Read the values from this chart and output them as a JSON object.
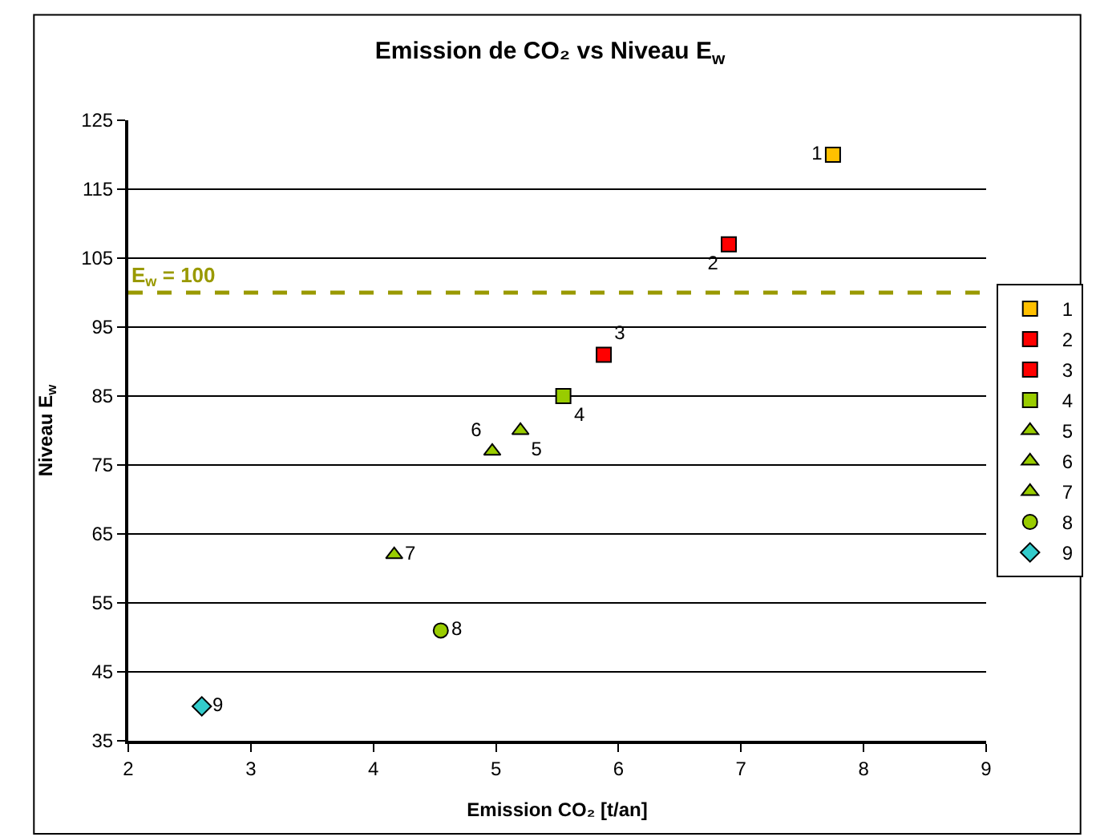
{
  "chart_data": {
    "type": "scatter",
    "title": "Emission de CO₂ vs Niveau E$_{w}$",
    "xlabel": "Emission CO₂ [t/an]",
    "ylabel": "Niveau E$_{w}$",
    "xlim": [
      2,
      9
    ],
    "xticks": [
      2,
      3,
      4,
      5,
      6,
      7,
      8,
      9
    ],
    "ylim": [
      35,
      125
    ],
    "yticks": [
      35,
      45,
      55,
      65,
      75,
      85,
      95,
      105,
      115,
      125
    ],
    "grid": "y",
    "legend": "right",
    "series": [
      {
        "name": "1",
        "color": "#ffc000",
        "marker": "square",
        "x": [
          7.75
        ],
        "values": [
          120
        ]
      },
      {
        "name": "2",
        "color": "#ff0000",
        "marker": "square",
        "x": [
          6.9
        ],
        "values": [
          107
        ]
      },
      {
        "name": "3",
        "color": "#ff0000",
        "marker": "square",
        "x": [
          5.88
        ],
        "values": [
          91
        ]
      },
      {
        "name": "4",
        "color": "#99cc00",
        "marker": "square",
        "x": [
          5.55
        ],
        "values": [
          85
        ]
      },
      {
        "name": "5",
        "color": "#99cc00",
        "marker": "triangle",
        "x": [
          5.2
        ],
        "values": [
          80
        ]
      },
      {
        "name": "6",
        "color": "#99cc00",
        "marker": "triangle",
        "x": [
          4.97
        ],
        "values": [
          77
        ]
      },
      {
        "name": "7",
        "color": "#99cc00",
        "marker": "triangle",
        "x": [
          4.17
        ],
        "values": [
          62
        ]
      },
      {
        "name": "8",
        "color": "#99cc00",
        "marker": "circle",
        "x": [
          4.55
        ],
        "values": [
          51
        ]
      },
      {
        "name": "9",
        "color": "#33cccc",
        "marker": "diamond",
        "x": [
          2.6
        ],
        "values": [
          40
        ]
      }
    ],
    "ref_lines": [
      {
        "axis": "y",
        "value": 100,
        "label": "E$_{w}$ = 100",
        "color": "#999900",
        "line_style": "dashed"
      }
    ]
  }
}
